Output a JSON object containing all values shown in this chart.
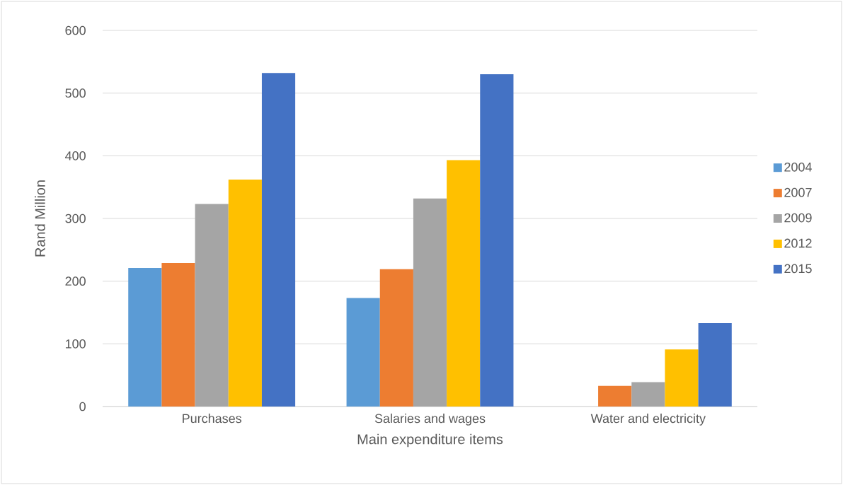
{
  "chart_data": {
    "type": "bar",
    "xlabel": "Main expenditure items",
    "ylabel": "Rand Million",
    "categories": [
      "Purchases",
      "Salaries and wages",
      "Water and electricity"
    ],
    "series": [
      {
        "name": "2004",
        "color": "#5b9bd5",
        "values": [
          221,
          173,
          null
        ]
      },
      {
        "name": "2007",
        "color": "#ed7d31",
        "values": [
          229,
          219,
          33
        ]
      },
      {
        "name": "2009",
        "color": "#a5a5a5",
        "values": [
          323,
          332,
          39
        ]
      },
      {
        "name": "2012",
        "color": "#ffc000",
        "values": [
          362,
          393,
          91
        ]
      },
      {
        "name": "2015",
        "color": "#4472c4",
        "values": [
          532,
          530,
          133
        ]
      }
    ],
    "ylim": [
      0,
      600
    ],
    "yticks": [
      0,
      100,
      200,
      300,
      400,
      500,
      600
    ],
    "grid": "y",
    "legend": "right"
  }
}
